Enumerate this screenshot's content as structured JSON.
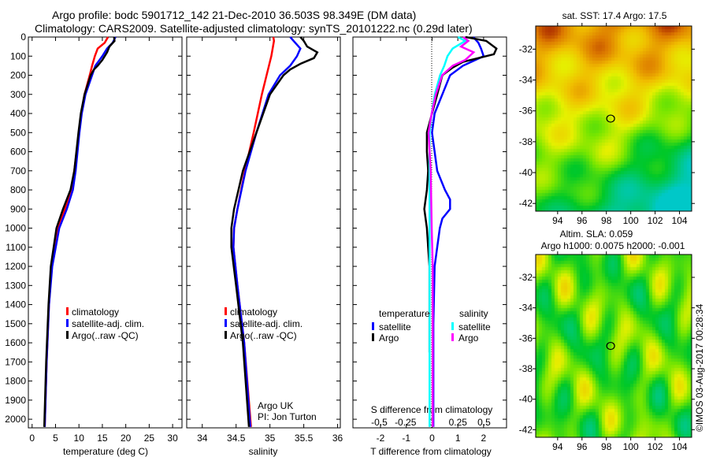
{
  "title": {
    "line1": "Argo profile: bodc 5901712_142 21-Dec-2010 36.503S 98.349E (DM data)",
    "line2": "Climatology: CARS2009. Satellite-adjusted climatology: synTS_20101222.nc (0.29d later)"
  },
  "colors": {
    "climatology": "#ff0000",
    "satellite": "#0000ff",
    "argo": "#000000",
    "s_satellite": "#00ffff",
    "s_argo": "#ff00ff"
  },
  "depth_ticks": [
    "0",
    "100",
    "200",
    "300",
    "400",
    "500",
    "600",
    "700",
    "800",
    "900",
    "1000",
    "1100",
    "1200",
    "1300",
    "1400",
    "1500",
    "1600",
    "1700",
    "1800",
    "1900",
    "2000"
  ],
  "chart_data": [
    {
      "type": "line",
      "xlabel": "temperature (deg C)",
      "xticks": [
        "0",
        "5",
        "10",
        "15",
        "20",
        "25",
        "30"
      ],
      "xlim": [
        -0.8,
        32
      ],
      "ylim": [
        0,
        2045
      ],
      "legend": [
        "climatology",
        "satellite-adj. clim.",
        "Argo(..raw -QC)"
      ],
      "series": [
        {
          "name": "climatology",
          "depth": [
            0,
            30,
            60,
            100,
            150,
            200,
            300,
            400,
            500,
            700,
            800,
            900,
            1000,
            1200,
            1400,
            1700,
            2040
          ],
          "values": [
            16.2,
            15.5,
            14,
            13.4,
            12.8,
            12.3,
            11.2,
            10.5,
            10,
            9,
            8.3,
            7,
            5.5,
            4.2,
            3.6,
            3.1,
            2.7
          ]
        },
        {
          "name": "satellite-adj. clim.",
          "depth": [
            0,
            30,
            60,
            100,
            150,
            200,
            300,
            400,
            500,
            700,
            800,
            900,
            1000,
            1200,
            1400,
            1700,
            2040
          ],
          "values": [
            17.8,
            17.2,
            16,
            15,
            13.5,
            12.8,
            11.4,
            10.6,
            10.1,
            9.3,
            8.7,
            7.4,
            5.8,
            4.3,
            3.6,
            3.1,
            2.7
          ]
        },
        {
          "name": "Argo(..raw -QC)",
          "depth": [
            0,
            20,
            50,
            80,
            120,
            150,
            170,
            200,
            300,
            400,
            500,
            700,
            800,
            900,
            1000,
            1200,
            1400,
            1700,
            2040
          ],
          "values": [
            17.5,
            17.6,
            16.5,
            16,
            15,
            14,
            13.2,
            12.5,
            11.2,
            10.4,
            9.9,
            9,
            8.2,
            6.6,
            5.2,
            4,
            3.5,
            3,
            2.6
          ]
        }
      ]
    },
    {
      "type": "line",
      "xlabel": "salinity",
      "xticks": [
        "34",
        "34.5",
        "35",
        "35.5",
        "36"
      ],
      "xlim": [
        33.77,
        36.04
      ],
      "ylim": [
        0,
        2045
      ],
      "legend": [
        "climatology",
        "satellite-adj. clim.",
        "Argo(..raw -QC)"
      ],
      "annotation": [
        "Argo UK",
        "PI: Jon Turton"
      ],
      "series": [
        {
          "name": "climatology",
          "depth": [
            0,
            20,
            100,
            200,
            300,
            500,
            700,
            900,
            1000,
            1100,
            1300,
            1600,
            2040
          ],
          "values": [
            35.05,
            35.06,
            35.02,
            34.95,
            34.88,
            34.76,
            34.63,
            34.52,
            34.47,
            34.46,
            34.52,
            34.62,
            34.72
          ]
        },
        {
          "name": "satellite-adj. clim.",
          "depth": [
            0,
            20,
            60,
            100,
            150,
            200,
            300,
            500,
            700,
            900,
            1000,
            1100,
            1300,
            1600,
            2040
          ],
          "values": [
            35.3,
            35.35,
            35.45,
            35.4,
            35.3,
            35.15,
            34.98,
            34.8,
            34.64,
            34.52,
            34.47,
            34.46,
            34.52,
            34.62,
            34.71
          ]
        },
        {
          "name": "Argo(..raw -QC)",
          "depth": [
            0,
            20,
            50,
            80,
            110,
            140,
            170,
            200,
            300,
            500,
            700,
            900,
            1000,
            1100,
            1300,
            1600,
            2040
          ],
          "values": [
            35.45,
            35.5,
            35.55,
            35.7,
            35.65,
            35.45,
            35.3,
            35.2,
            35.0,
            34.8,
            34.6,
            34.47,
            34.43,
            34.43,
            34.5,
            34.6,
            34.69
          ]
        }
      ]
    },
    {
      "type": "line",
      "xlabel": "T difference from climatology",
      "x2label": "S difference from climatology",
      "xticks": [
        "-2",
        "-1",
        "0",
        "1",
        "2"
      ],
      "x2ticks": [
        "-0.5",
        "-0.25",
        "0",
        "0.25",
        "0.5"
      ],
      "xlim": [
        -3.07,
        2.89
      ],
      "x2lim": [
        -0.5,
        0.5
      ],
      "ylim": [
        0,
        2045
      ],
      "legend": {
        "temperature": "temperature",
        "salinity": "salinity",
        "items": [
          "satellite",
          "Argo",
          "satellite",
          "Argo"
        ]
      },
      "series": [
        {
          "name": "T satellite",
          "axis": "T",
          "depth": [
            0,
            30,
            60,
            100,
            150,
            200,
            300,
            400,
            500,
            700,
            800,
            850,
            900,
            950,
            1000,
            1200,
            1500,
            2040
          ],
          "values": [
            1.6,
            1.8,
            1.9,
            2.0,
            1.2,
            0.7,
            0.4,
            0.1,
            0,
            0.2,
            0.5,
            0.7,
            0.7,
            0.4,
            0.3,
            0.1,
            0.05,
            0.05
          ]
        },
        {
          "name": "T Argo",
          "axis": "T",
          "depth": [
            0,
            20,
            60,
            90,
            130,
            160,
            200,
            300,
            400,
            500,
            600,
            700,
            800,
            900,
            1000,
            1100,
            1200,
            1300,
            1650
          ],
          "values": [
            1.3,
            2.1,
            2.5,
            2.4,
            1.2,
            0.8,
            0.4,
            0.2,
            0,
            -0.2,
            -0.2,
            -0.15,
            -0.2,
            -0.3,
            -0.2,
            -0.15,
            -0.1,
            -0.1,
            -0.1
          ]
        },
        {
          "name": "S satellite",
          "axis": "S",
          "depth": [
            0,
            20,
            60,
            100,
            150,
            200,
            300,
            400,
            500,
            700,
            1000,
            1500,
            2040
          ],
          "values": [
            0.25,
            0.32,
            0.2,
            0.15,
            0.12,
            0.08,
            0.03,
            0,
            -0.02,
            -0.02,
            -0.02,
            -0.02,
            -0.02
          ]
        },
        {
          "name": "S Argo",
          "axis": "S",
          "depth": [
            0,
            20,
            50,
            80,
            120,
            150,
            200,
            300,
            400,
            500,
            700,
            1000,
            1200,
            1500,
            2040
          ],
          "values": [
            0.3,
            0.35,
            0.28,
            0.4,
            0.32,
            0.2,
            0.1,
            0.04,
            0,
            -0.03,
            -0.01,
            0,
            0.01,
            0.01,
            0.01
          ]
        }
      ]
    },
    {
      "type": "heatmap",
      "title": "sat. SST: 17.4  Argo: 17.5",
      "xticks": [
        "94",
        "96",
        "98",
        "100",
        "102",
        "104"
      ],
      "yticks": [
        "-32",
        "-34",
        "-36",
        "-38",
        "-40",
        "-42"
      ],
      "xlim": [
        92.2,
        105
      ],
      "ylim": [
        -42.5,
        -30.5
      ],
      "marker": {
        "lon": 98.349,
        "lat": -36.503
      }
    },
    {
      "type": "heatmap",
      "title": "Altim. SLA: 0.059",
      "subtitle": "Argo h1000: 0.0075 h2000: -0.001",
      "xticks": [
        "94",
        "96",
        "98",
        "100",
        "102",
        "104"
      ],
      "yticks": [
        "-32",
        "-34",
        "-36",
        "-38",
        "-40",
        "-42"
      ],
      "xlim": [
        92.2,
        105
      ],
      "ylim": [
        -42.5,
        -30.5
      ],
      "marker": {
        "lon": 98.349,
        "lat": -36.503
      }
    }
  ],
  "credit": "©IMOS 03-Aug-2017 00:28:34"
}
